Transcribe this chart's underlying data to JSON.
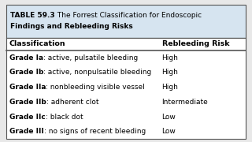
{
  "title_bold": "TABLE 59.3",
  "title_line1_rest": " The Forrest Classification for Endoscopic",
  "title_line2": "Findings and Rebleeding Risks",
  "col1_header": "Classification",
  "col2_header": "Rebleeding Risk",
  "rows": [
    [
      "Grade Ia",
      ": active, pulsatile bleeding",
      "High"
    ],
    [
      "Grade Ib",
      ": active, nonpulsatile bleeding",
      "High"
    ],
    [
      "Grade IIa",
      ": nonbleeding visible vessel",
      "High"
    ],
    [
      "Grade IIb",
      ": adherent clot",
      "Intermediate"
    ],
    [
      "Grade IIc",
      ": black dot",
      "Low"
    ],
    [
      "Grade III",
      ": no signs of recent bleeding",
      "Low"
    ]
  ],
  "bg_header": "#d6e4f0",
  "bg_white": "#ffffff",
  "bg_outer": "#e8e8e8",
  "text_color": "#000000",
  "border_color": "#555555",
  "title_fontsize": 6.5,
  "header_fontsize": 6.8,
  "row_fontsize": 6.5,
  "fig_width": 3.2,
  "fig_height": 1.8,
  "dpi": 100
}
